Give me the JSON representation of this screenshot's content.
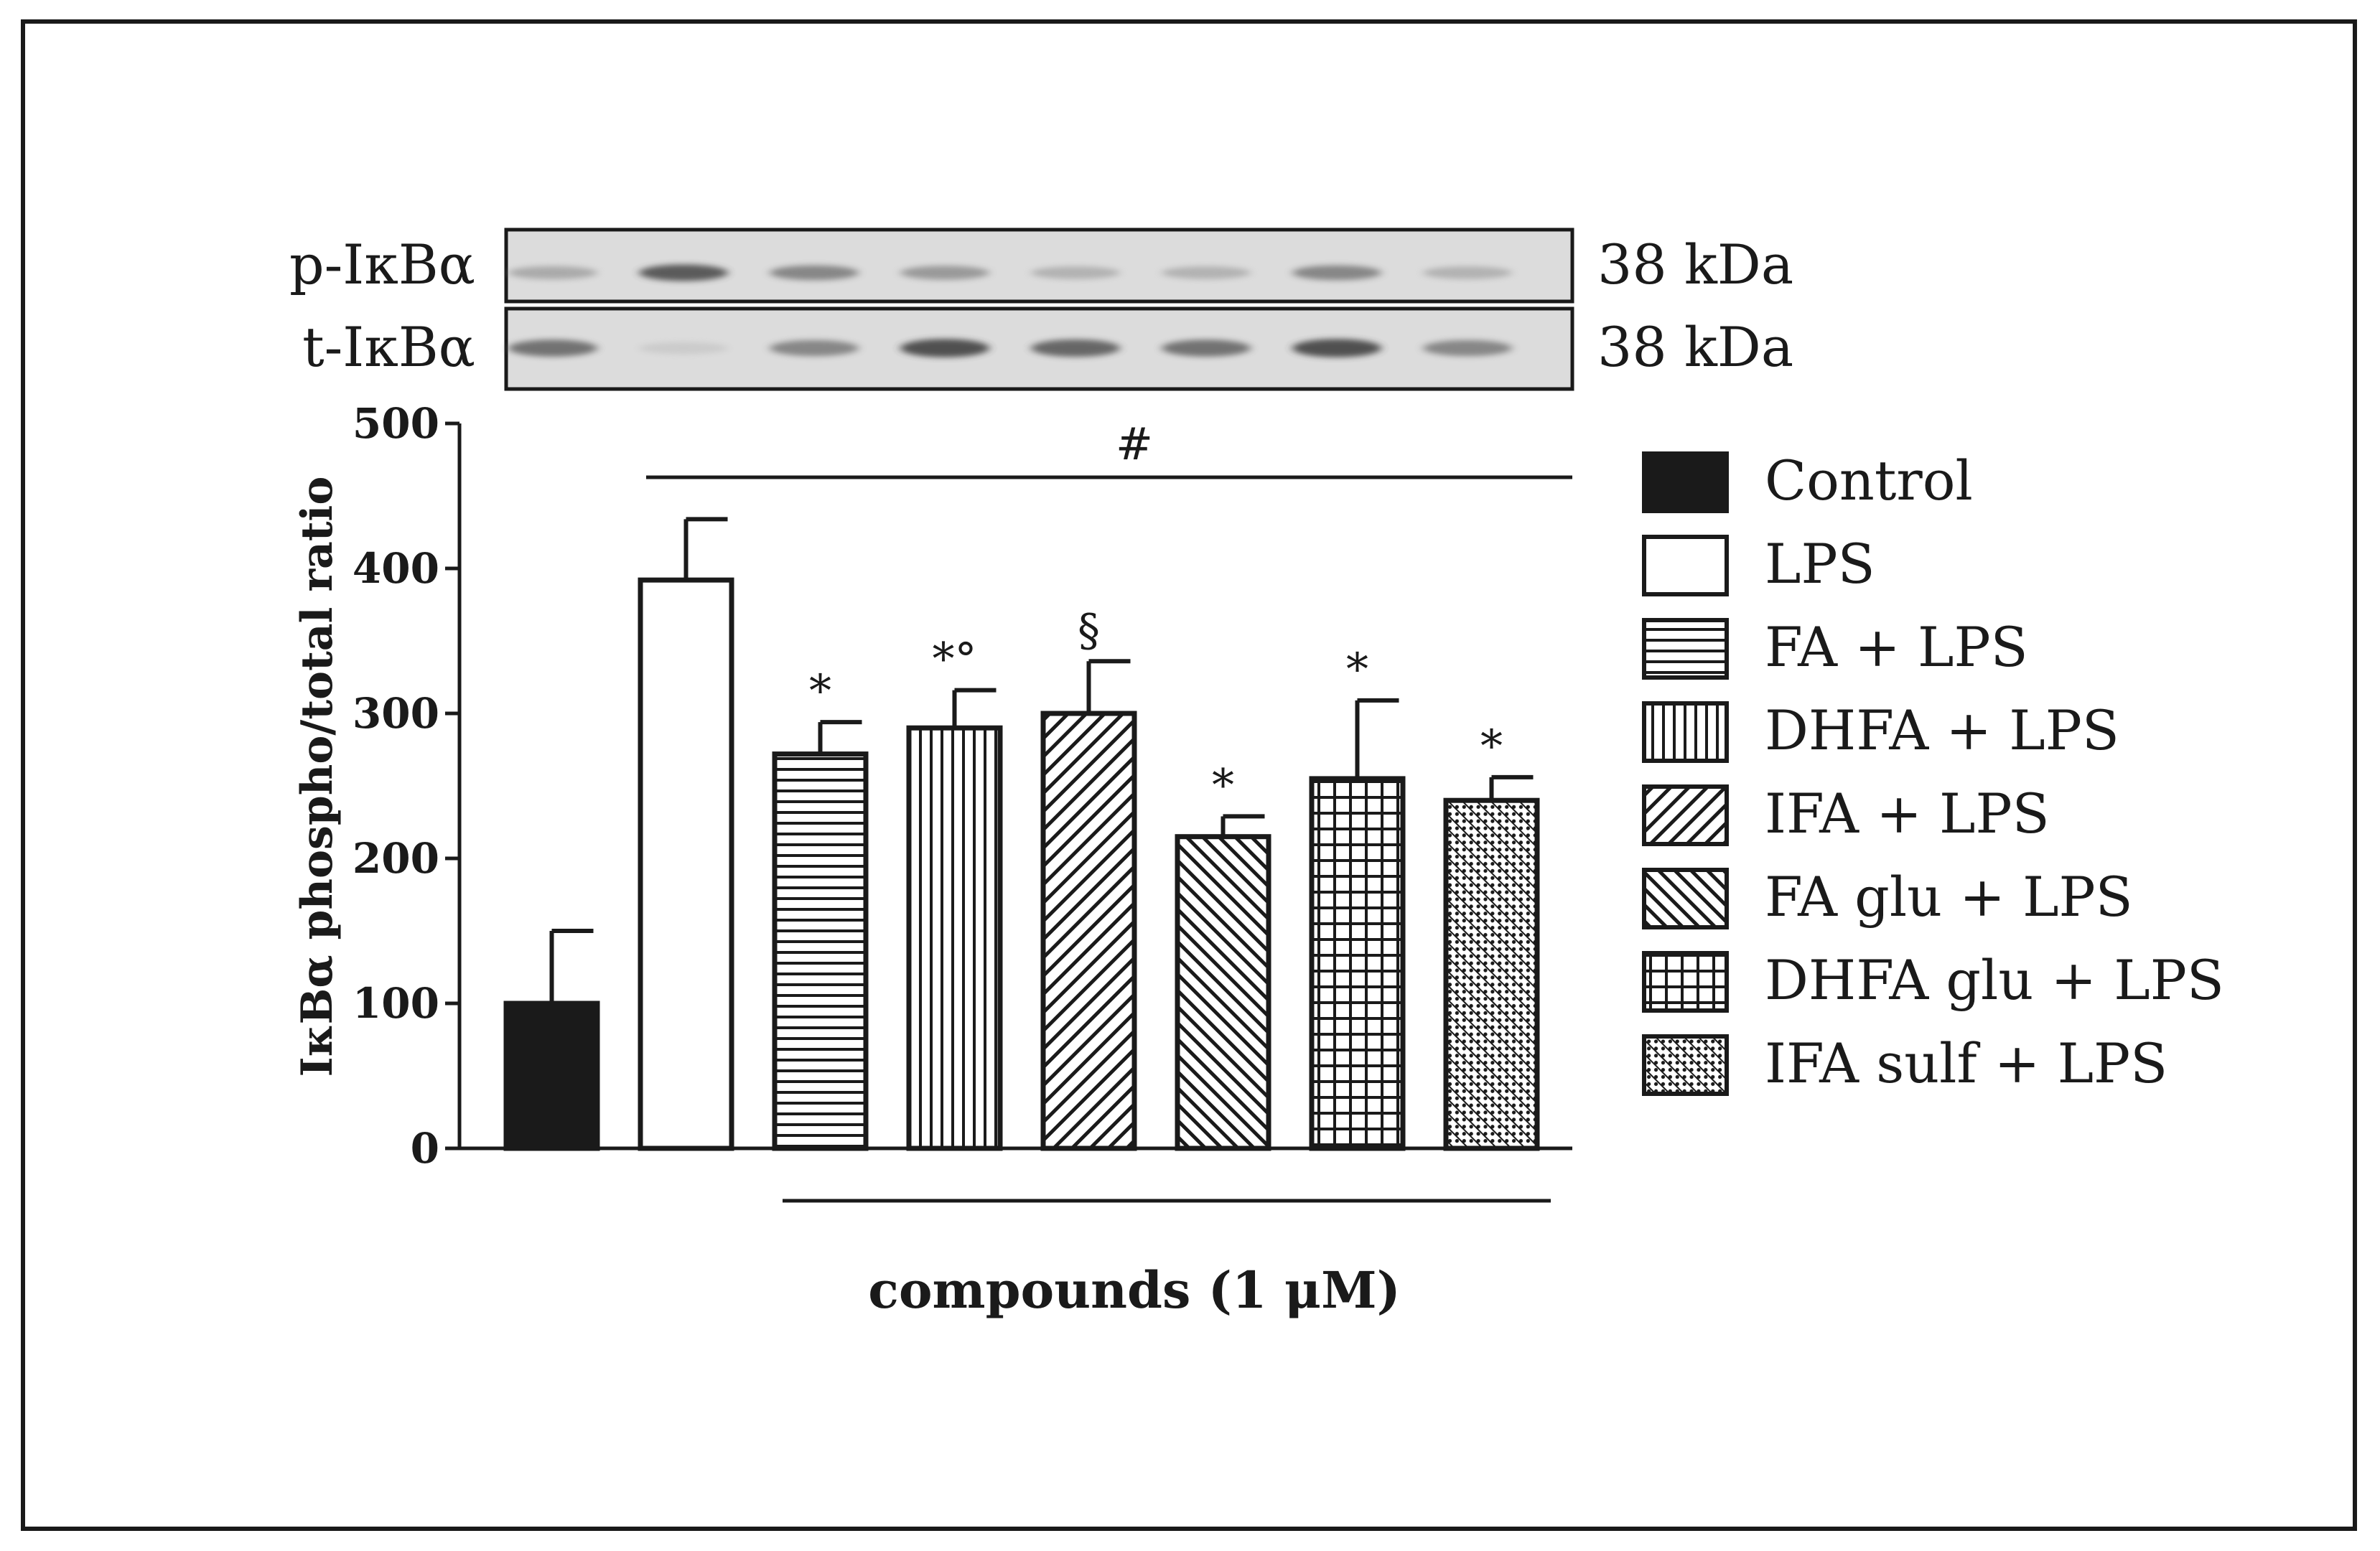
{
  "chart_data": {
    "type": "bar",
    "ylabel": "IκBα phospho/total ratio",
    "ylim": [
      0,
      500
    ],
    "yticks": [
      0,
      100,
      200,
      300,
      400,
      500
    ],
    "categories": [
      "Control",
      "LPS",
      "FA + LPS",
      "DHFA + LPS",
      "IFA + LPS",
      "FA glu + LPS",
      "DHFA glu + LPS",
      "IFA sulf + LPS"
    ],
    "values": [
      100,
      392,
      272,
      290,
      300,
      215,
      255,
      240
    ],
    "errors": [
      50,
      42,
      22,
      26,
      36,
      14,
      54,
      16
    ],
    "patterns": [
      "solid",
      "white",
      "hlines",
      "vlines",
      "diag",
      "diag2",
      "grid",
      "dots"
    ],
    "annotations": [
      "",
      "",
      "*",
      "*°",
      "§",
      "*",
      "*",
      "*"
    ],
    "significance_label": "#",
    "group_label": "compounds (1 μM)",
    "legend_position": "right"
  },
  "blot": {
    "rows": [
      {
        "label": "p-IκBα",
        "size": "38 kDa"
      },
      {
        "label": "t-IκBα",
        "size": "38 kDa"
      }
    ],
    "p_intensity": [
      0.35,
      0.75,
      0.55,
      0.45,
      0.3,
      0.3,
      0.55,
      0.3
    ],
    "t_intensity": [
      0.65,
      0.1,
      0.55,
      0.8,
      0.7,
      0.65,
      0.8,
      0.55
    ]
  },
  "colors": {
    "ink": "#1a1a1a",
    "background": "#ffffff",
    "blot_background": "#d9d9d9"
  }
}
